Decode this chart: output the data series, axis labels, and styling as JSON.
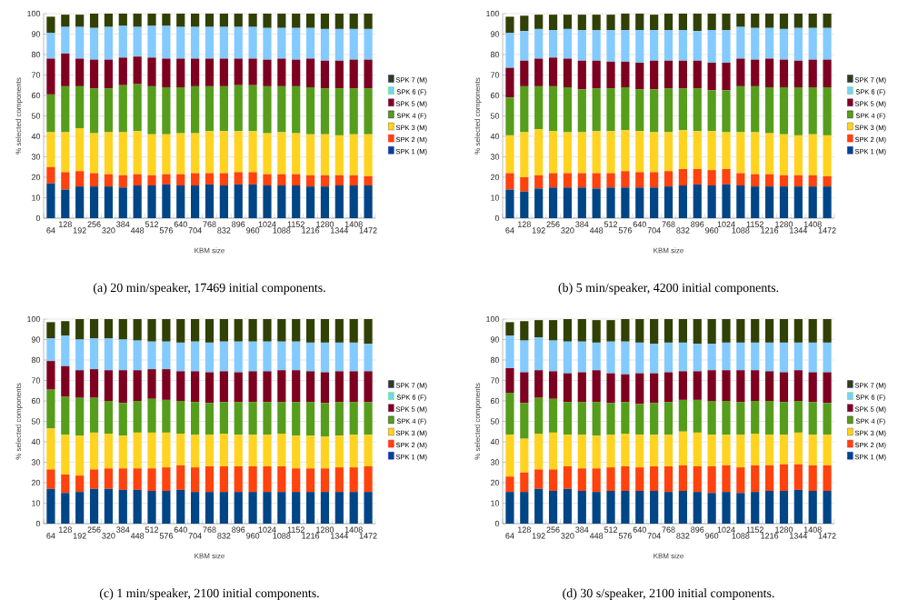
{
  "chart_data": [
    {
      "type": "bar",
      "stacked": true,
      "xlabel": "KBM size",
      "ylabel": "% selected components",
      "ylim": [
        0,
        100
      ],
      "yticks": [
        0,
        10,
        20,
        30,
        40,
        50,
        60,
        70,
        80,
        90,
        100
      ],
      "grid": "y",
      "legend": "right",
      "categories": [
        "64",
        "128",
        "192",
        "256",
        "320",
        "384",
        "448",
        "512",
        "576",
        "640",
        "704",
        "768",
        "832",
        "896",
        "960",
        "1024",
        "1088",
        "1152",
        "1216",
        "1280",
        "1344",
        "1408",
        "1472"
      ],
      "annotations": [
        "(a) 20 min/speaker, 17469 initial components."
      ],
      "series": [
        {
          "name": "SPK 1 (M)",
          "color": "#004586",
          "values": [
            17,
            14,
            15.5,
            15.5,
            15.5,
            15,
            16,
            16,
            16.5,
            16,
            16,
            16.5,
            16,
            16.5,
            16.5,
            16,
            16,
            16,
            15.5,
            15.5,
            16,
            16,
            16
          ]
        },
        {
          "name": "SPK 2 (M)",
          "color": "#ff420e",
          "values": [
            8,
            8.5,
            7.5,
            6.5,
            6,
            6,
            5.5,
            5,
            5,
            5.5,
            6,
            5.5,
            6,
            6,
            6,
            5.5,
            5.5,
            5.5,
            5.5,
            5.5,
            5,
            5,
            4.5
          ]
        },
        {
          "name": "SPK 3 (M)",
          "color": "#ffd320",
          "values": [
            17,
            19.5,
            21,
            19.5,
            20.5,
            21,
            21,
            20,
            19.5,
            20,
            19.5,
            20.5,
            20.5,
            20,
            20,
            20,
            20.5,
            20,
            20,
            20,
            19.5,
            20,
            20.5
          ]
        },
        {
          "name": "SPK 4 (F)",
          "color": "#579d1c",
          "values": [
            18.5,
            22.5,
            20.5,
            22,
            21.5,
            23,
            23,
            23.5,
            23,
            22.5,
            23,
            22,
            22,
            22.5,
            22.5,
            23,
            22.5,
            23,
            23,
            22.5,
            23,
            22.5,
            22.5
          ]
        },
        {
          "name": "SPK 5 (M)",
          "color": "#7e0021",
          "values": [
            17.5,
            16,
            13.5,
            14,
            14,
            13.5,
            13.5,
            14,
            14,
            14,
            13.5,
            13.5,
            13.5,
            13,
            13,
            13,
            13.5,
            13,
            14,
            13.5,
            13.5,
            14,
            14
          ]
        },
        {
          "name": "SPK 6 (F)",
          "color": "#83caff",
          "values": [
            12.5,
            13,
            15.5,
            15.5,
            16,
            15.5,
            14.5,
            15.5,
            16,
            15.5,
            15.5,
            15.5,
            15.5,
            15.5,
            15.5,
            15.5,
            15,
            15.5,
            15,
            15.5,
            15.5,
            15,
            15
          ]
        },
        {
          "name": "SPK 7 (M)",
          "color": "#314004",
          "values": [
            8,
            6,
            6,
            7,
            6.5,
            6,
            6.5,
            6,
            6,
            6.5,
            6.5,
            6.5,
            6.5,
            6.5,
            6.5,
            7,
            7,
            7,
            7,
            7.5,
            7.5,
            7.5,
            7.5
          ]
        }
      ]
    },
    {
      "type": "bar",
      "stacked": true,
      "xlabel": "KBM size",
      "ylabel": "% selected components",
      "ylim": [
        0,
        100
      ],
      "yticks": [
        0,
        10,
        20,
        30,
        40,
        50,
        60,
        70,
        80,
        90,
        100
      ],
      "grid": "y",
      "legend": "right",
      "categories": [
        "64",
        "128",
        "192",
        "256",
        "320",
        "384",
        "448",
        "512",
        "576",
        "640",
        "704",
        "768",
        "832",
        "896",
        "960",
        "1024",
        "1088",
        "1152",
        "1216",
        "1280",
        "1344",
        "1408",
        "1472"
      ],
      "annotations": [
        "(b) 5 min/speaker, 4200 initial components."
      ],
      "series": [
        {
          "name": "SPK 1 (M)",
          "color": "#004586",
          "values": [
            14,
            13,
            14.5,
            15,
            15,
            15,
            14.5,
            15,
            15,
            15,
            15,
            15.5,
            16,
            16.5,
            16,
            16.5,
            16,
            15.5,
            15.5,
            15.5,
            15.5,
            15.5,
            15.5
          ]
        },
        {
          "name": "SPK 2 (M)",
          "color": "#ff420e",
          "values": [
            8,
            7,
            6.5,
            7,
            7,
            7,
            7.5,
            7,
            8,
            7.5,
            7.5,
            7.5,
            8,
            7.5,
            7.5,
            7.5,
            6,
            6,
            6,
            5.5,
            5.5,
            5.5,
            5
          ]
        },
        {
          "name": "SPK 3 (M)",
          "color": "#ffd320",
          "values": [
            18.5,
            22,
            22.5,
            20.5,
            20,
            20,
            20.5,
            20.5,
            20,
            20,
            19.5,
            19,
            19,
            18.5,
            19,
            18,
            20,
            20.5,
            20,
            20,
            19.5,
            20,
            20
          ]
        },
        {
          "name": "SPK 4 (F)",
          "color": "#579d1c",
          "values": [
            18.5,
            22.5,
            21,
            22,
            22,
            21,
            21,
            21,
            21,
            20.5,
            21,
            21.5,
            20.5,
            21,
            20,
            20.5,
            22.5,
            22.5,
            22.5,
            23,
            23.5,
            23,
            23.5
          ]
        },
        {
          "name": "SPK 5 (M)",
          "color": "#7e0021",
          "values": [
            14.5,
            12.5,
            13.5,
            14,
            14,
            14,
            13.5,
            13,
            12.5,
            13,
            14,
            13.5,
            13.5,
            13.5,
            13.5,
            13.5,
            13.5,
            13,
            14,
            13.5,
            13,
            13.5,
            13.5
          ]
        },
        {
          "name": "SPK 6 (F)",
          "color": "#83caff",
          "values": [
            17,
            14.5,
            14.5,
            13.5,
            14.5,
            15,
            15,
            15.5,
            15.5,
            16,
            15,
            15,
            15,
            14.5,
            16,
            16,
            15.5,
            15.5,
            15,
            15,
            16,
            15.5,
            15.5
          ]
        },
        {
          "name": "SPK 7 (M)",
          "color": "#314004",
          "values": [
            8,
            7.5,
            7,
            7.5,
            7,
            7.5,
            7.5,
            7.5,
            8,
            8,
            7.5,
            8,
            8,
            8.5,
            8,
            8,
            6.5,
            7,
            7,
            7.5,
            7,
            7,
            7
          ]
        }
      ]
    },
    {
      "type": "bar",
      "stacked": true,
      "xlabel": "KBM size",
      "ylabel": "% selected components",
      "ylim": [
        0,
        100
      ],
      "yticks": [
        0,
        10,
        20,
        30,
        40,
        50,
        60,
        70,
        80,
        90,
        100
      ],
      "grid": "y",
      "legend": "right",
      "categories": [
        "64",
        "128",
        "192",
        "256",
        "320",
        "384",
        "448",
        "512",
        "576",
        "640",
        "704",
        "768",
        "832",
        "896",
        "960",
        "1024",
        "1088",
        "1152",
        "1216",
        "1280",
        "1344",
        "1408",
        "1472"
      ],
      "annotations": [
        "(c) 1 min/speaker, 2100 initial components."
      ],
      "series": [
        {
          "name": "SPK 1 (M)",
          "color": "#004586",
          "values": [
            17,
            15,
            15.5,
            17,
            17,
            16.5,
            16.5,
            16,
            16,
            16.5,
            15.5,
            15.5,
            15.5,
            15.5,
            15.5,
            15.5,
            15.5,
            15.5,
            15.5,
            15.5,
            15.5,
            15.5,
            15.5
          ]
        },
        {
          "name": "SPK 2 (M)",
          "color": "#ff420e",
          "values": [
            9.5,
            9,
            8,
            9.5,
            10,
            10.5,
            10.5,
            11,
            11.5,
            12,
            12,
            12.5,
            12.5,
            12.5,
            12.5,
            12.5,
            12.5,
            11.5,
            11.5,
            11.5,
            12,
            12,
            12.5
          ]
        },
        {
          "name": "SPK 3 (M)",
          "color": "#ffd320",
          "values": [
            20,
            19.5,
            19.5,
            18,
            17,
            16,
            17.5,
            17.5,
            17,
            15.5,
            16,
            15.5,
            16,
            15.5,
            15.5,
            15.5,
            16,
            16,
            16,
            15.5,
            15.5,
            16,
            15.5
          ]
        },
        {
          "name": "SPK 4 (F)",
          "color": "#579d1c",
          "values": [
            19,
            18.5,
            18.5,
            17,
            16,
            16,
            15.5,
            16.5,
            16,
            16,
            16,
            15.5,
            15.5,
            16,
            16,
            16,
            15.5,
            16.5,
            16.5,
            16.5,
            16.5,
            16,
            16
          ]
        },
        {
          "name": "SPK 5 (M)",
          "color": "#7e0021",
          "values": [
            14,
            15,
            13.5,
            14,
            15,
            16,
            15,
            14.5,
            15,
            14.5,
            15,
            15,
            15,
            14.5,
            15,
            15,
            15.5,
            15.5,
            15,
            15,
            15,
            15,
            15
          ]
        },
        {
          "name": "SPK 6 (F)",
          "color": "#83caff",
          "values": [
            11,
            15,
            15,
            15,
            15.5,
            15,
            14.5,
            13.5,
            13.5,
            14,
            14.5,
            14.5,
            14.5,
            15,
            14.5,
            14.5,
            14,
            14,
            14,
            14.5,
            14,
            14,
            13.5
          ]
        },
        {
          "name": "SPK 7 (M)",
          "color": "#314004",
          "values": [
            8,
            7,
            10,
            9.5,
            9.5,
            10,
            10.5,
            11,
            11,
            11.5,
            11,
            11.5,
            11,
            11,
            11,
            11,
            11,
            11,
            11.5,
            11.5,
            11.5,
            11.5,
            12
          ]
        }
      ]
    },
    {
      "type": "bar",
      "stacked": true,
      "xlabel": "KBM size",
      "ylabel": "% selected components",
      "ylim": [
        0,
        100
      ],
      "yticks": [
        0,
        10,
        20,
        30,
        40,
        50,
        60,
        70,
        80,
        90,
        100
      ],
      "grid": "y",
      "legend": "right",
      "categories": [
        "64",
        "128",
        "192",
        "256",
        "320",
        "384",
        "448",
        "512",
        "576",
        "640",
        "704",
        "768",
        "832",
        "896",
        "960",
        "1024",
        "1088",
        "1152",
        "1216",
        "1280",
        "1344",
        "1408",
        "1472"
      ],
      "annotations": [
        "(d) 30 s/speaker, 2100 initial components."
      ],
      "series": [
        {
          "name": "SPK 1 (M)",
          "color": "#004586",
          "values": [
            15.5,
            15.5,
            17,
            16,
            17,
            16,
            15.5,
            16,
            16,
            16,
            16,
            15.5,
            16,
            15.5,
            15,
            15.5,
            15,
            15.5,
            16,
            16,
            16.5,
            16,
            16
          ]
        },
        {
          "name": "SPK 2 (M)",
          "color": "#ff420e",
          "values": [
            7.5,
            9.5,
            9.5,
            10.5,
            11,
            11,
            11.5,
            11.5,
            12,
            11.5,
            12,
            12.5,
            12.5,
            12.5,
            13,
            13,
            12.5,
            13,
            12.5,
            13,
            12.5,
            12.5,
            12.5
          ]
        },
        {
          "name": "SPK 3 (M)",
          "color": "#ffd320",
          "values": [
            20.5,
            16.5,
            17.5,
            18,
            15.5,
            16.5,
            16,
            16,
            16,
            16,
            15.5,
            15.5,
            16.5,
            16.5,
            15.5,
            15,
            16,
            15.5,
            15,
            14.5,
            15.5,
            15,
            15
          ]
        },
        {
          "name": "SPK 4 (F)",
          "color": "#579d1c",
          "values": [
            20.5,
            17.5,
            17.5,
            16.5,
            16,
            16,
            16.5,
            15.5,
            15.5,
            15,
            15.5,
            16,
            15.5,
            16,
            16.5,
            16.5,
            16,
            16,
            16.5,
            16,
            15.5,
            16,
            15.5
          ]
        },
        {
          "name": "SPK 5 (M)",
          "color": "#7e0021",
          "values": [
            12,
            15,
            13.5,
            13.5,
            14,
            14.5,
            15.5,
            14.5,
            13.5,
            15,
            14.5,
            14.5,
            14,
            14,
            15,
            15,
            15.5,
            15,
            14.5,
            14.5,
            15,
            14.5,
            15
          ]
        },
        {
          "name": "SPK 6 (F)",
          "color": "#83caff",
          "values": [
            16,
            15.5,
            16,
            15,
            15.5,
            15,
            13.5,
            15.5,
            16,
            15,
            14.5,
            14.5,
            14,
            13.5,
            13,
            13.5,
            13.5,
            13.5,
            14,
            14.5,
            13.5,
            14.5,
            14.5
          ]
        },
        {
          "name": "SPK 7 (M)",
          "color": "#314004",
          "values": [
            6.5,
            9.5,
            8.5,
            10,
            11,
            11,
            11,
            10.5,
            11,
            11.5,
            12,
            11.5,
            11.5,
            12,
            12,
            11.5,
            11.5,
            11.5,
            11.5,
            11.5,
            11.5,
            11.5,
            11.5
          ]
        }
      ]
    }
  ]
}
